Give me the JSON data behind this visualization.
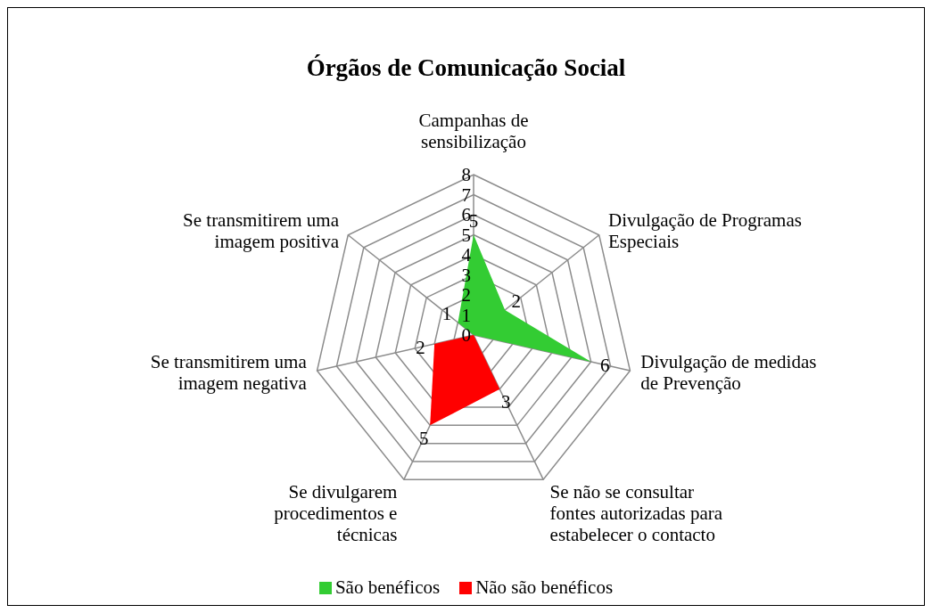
{
  "chart_data": {
    "type": "radar",
    "title": "Órgãos de Comunicação Social",
    "categories": [
      "Campanhas de sensibilização",
      "Divulgação de Programas Especiais",
      "Divulgação de medidas de Prevenção",
      "Se não se consultar fontes autorizadas para estabelecer o contacto",
      "Se divulgarem procedimentos e técnicas",
      "Se transmitirem uma imagem negativa",
      "Se transmitirem uma imagem positiva"
    ],
    "series": [
      {
        "name": "São benéficos",
        "color": "#33cc33",
        "values": [
          5,
          2,
          6,
          0,
          0,
          0,
          1
        ],
        "value_labels": [
          "5",
          "2",
          "6",
          null,
          null,
          null,
          "1"
        ]
      },
      {
        "name": "Não são benéficos",
        "color": "#ff0000",
        "values": [
          0,
          0,
          0,
          3,
          5,
          2,
          0
        ],
        "value_labels": [
          null,
          null,
          null,
          "3",
          "5",
          "2",
          null
        ]
      }
    ],
    "ylim": [
      0,
      8
    ],
    "yticks": [
      0,
      1,
      2,
      3,
      4,
      5,
      6,
      7,
      8
    ],
    "grid": true,
    "legend": "bottom"
  }
}
